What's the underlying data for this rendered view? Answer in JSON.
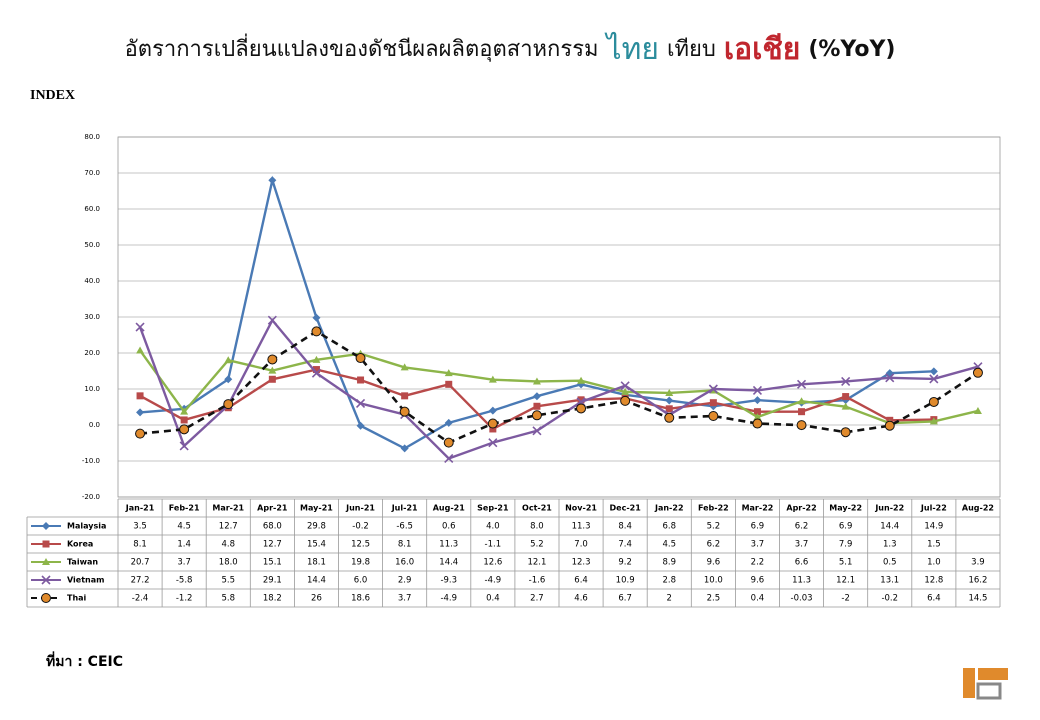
{
  "title_parts": [
    {
      "text": "อัตราการเปลี่ยนแปลงของดัชนีผลผลิตอุตสาหกรรม",
      "color": "#111111"
    },
    {
      "text": "ไทย",
      "color": "#2b8c9c"
    },
    {
      "text": "เทียบ",
      "color": "#111111"
    },
    {
      "text": "เอเชีย",
      "color": "#c0262e"
    },
    {
      "text": "(%YoY)",
      "color": "#111111"
    }
  ],
  "source": "ที่มา : CEIC",
  "chart_data": {
    "type": "line",
    "y_label": "INDEX",
    "categories": [
      "Jan-21",
      "Feb-21",
      "Mar-21",
      "Apr-21",
      "May-21",
      "Jun-21",
      "Jul-21",
      "Aug-21",
      "Sep-21",
      "Oct-21",
      "Nov-21",
      "Dec-21",
      "Jan-22",
      "Feb-22",
      "Mar-22",
      "Apr-22",
      "May-22",
      "Jun-22",
      "Jul-22",
      "Aug-22"
    ],
    "ylim": [
      -20,
      80
    ],
    "yticks": [
      {
        "value": -20,
        "label": "-20.0"
      },
      {
        "value": -10,
        "label": "-10.0"
      },
      {
        "value": 0,
        "label": "0.0"
      },
      {
        "value": 10,
        "label": "10.0"
      },
      {
        "value": 20,
        "label": "20.0"
      },
      {
        "value": 30,
        "label": "30.0"
      },
      {
        "value": 40,
        "label": "40.0"
      },
      {
        "value": 50,
        "label": "50.0"
      },
      {
        "value": 60,
        "label": "60.0"
      },
      {
        "value": 70,
        "label": "70.0"
      },
      {
        "value": 80,
        "label": "80.0"
      }
    ],
    "grid": true,
    "series": [
      {
        "name": "Malaysia",
        "color": "#4a7ab5",
        "marker": "diamond",
        "dashed": false,
        "values": [
          3.5,
          4.5,
          12.7,
          68.0,
          29.8,
          -0.2,
          -6.5,
          0.6,
          4.0,
          8.0,
          11.3,
          8.4,
          6.8,
          5.2,
          6.9,
          6.2,
          6.9,
          14.4,
          14.9,
          null
        ],
        "value_labels": [
          "3.5",
          "4.5",
          "12.7",
          "68.0",
          "29.8",
          "-0.2",
          "-6.5",
          "0.6",
          "4.0",
          "8.0",
          "11.3",
          "8.4",
          "6.8",
          "5.2",
          "6.9",
          "6.2",
          "6.9",
          "14.4",
          "14.9",
          null
        ]
      },
      {
        "name": "Korea",
        "color": "#b84a4a",
        "marker": "square",
        "dashed": false,
        "values": [
          8.1,
          1.4,
          4.8,
          12.7,
          15.4,
          12.5,
          8.1,
          11.3,
          -1.1,
          5.2,
          7.0,
          7.4,
          4.5,
          6.2,
          3.7,
          3.7,
          7.9,
          1.3,
          1.5,
          null
        ],
        "value_labels": [
          "8.1",
          "1.4",
          "4.8",
          "12.7",
          "15.4",
          "12.5",
          "8.1",
          "11.3",
          "-1.1",
          "5.2",
          "7.0",
          "7.4",
          "4.5",
          "6.2",
          "3.7",
          "3.7",
          "7.9",
          "1.3",
          "1.5",
          null
        ]
      },
      {
        "name": "Taiwan",
        "color": "#8db54a",
        "marker": "triangle",
        "dashed": false,
        "values": [
          20.7,
          3.7,
          18.0,
          15.1,
          18.1,
          19.8,
          16.0,
          14.4,
          12.6,
          12.1,
          12.3,
          9.2,
          8.9,
          9.6,
          2.2,
          6.6,
          5.1,
          0.5,
          1.0,
          3.9
        ],
        "value_labels": [
          "20.7",
          "3.7",
          "18.0",
          "15.1",
          "18.1",
          "19.8",
          "16.0",
          "14.4",
          "12.6",
          "12.1",
          "12.3",
          "9.2",
          "8.9",
          "9.6",
          "2.2",
          "6.6",
          "5.1",
          "0.5",
          "1.0",
          "3.9"
        ]
      },
      {
        "name": "Vietnam",
        "color": "#7d5aa0",
        "marker": "x",
        "dashed": false,
        "values": [
          27.2,
          -5.8,
          5.5,
          29.1,
          14.4,
          6.0,
          2.9,
          -9.3,
          -4.9,
          -1.6,
          6.4,
          10.9,
          2.8,
          10.0,
          9.6,
          11.3,
          12.1,
          13.1,
          12.8,
          16.2
        ],
        "value_labels": [
          "27.2",
          "-5.8",
          "5.5",
          "29.1",
          "14.4",
          "6.0",
          "2.9",
          "-9.3",
          "-4.9",
          "-1.6",
          "6.4",
          "10.9",
          "2.8",
          "10.0",
          "9.6",
          "11.3",
          "12.1",
          "13.1",
          "12.8",
          "16.2"
        ]
      },
      {
        "name": "Thai",
        "color": "#111111",
        "marker": "circle",
        "marker_color": "#e08a2c",
        "dashed": true,
        "values": [
          -2.4,
          -1.2,
          5.8,
          18.2,
          26,
          18.6,
          3.7,
          -4.9,
          0.4,
          2.7,
          4.6,
          6.7,
          2,
          2.5,
          0.4,
          -0.03,
          -2,
          -0.2,
          6.4,
          14.5
        ]
      }
    ]
  }
}
